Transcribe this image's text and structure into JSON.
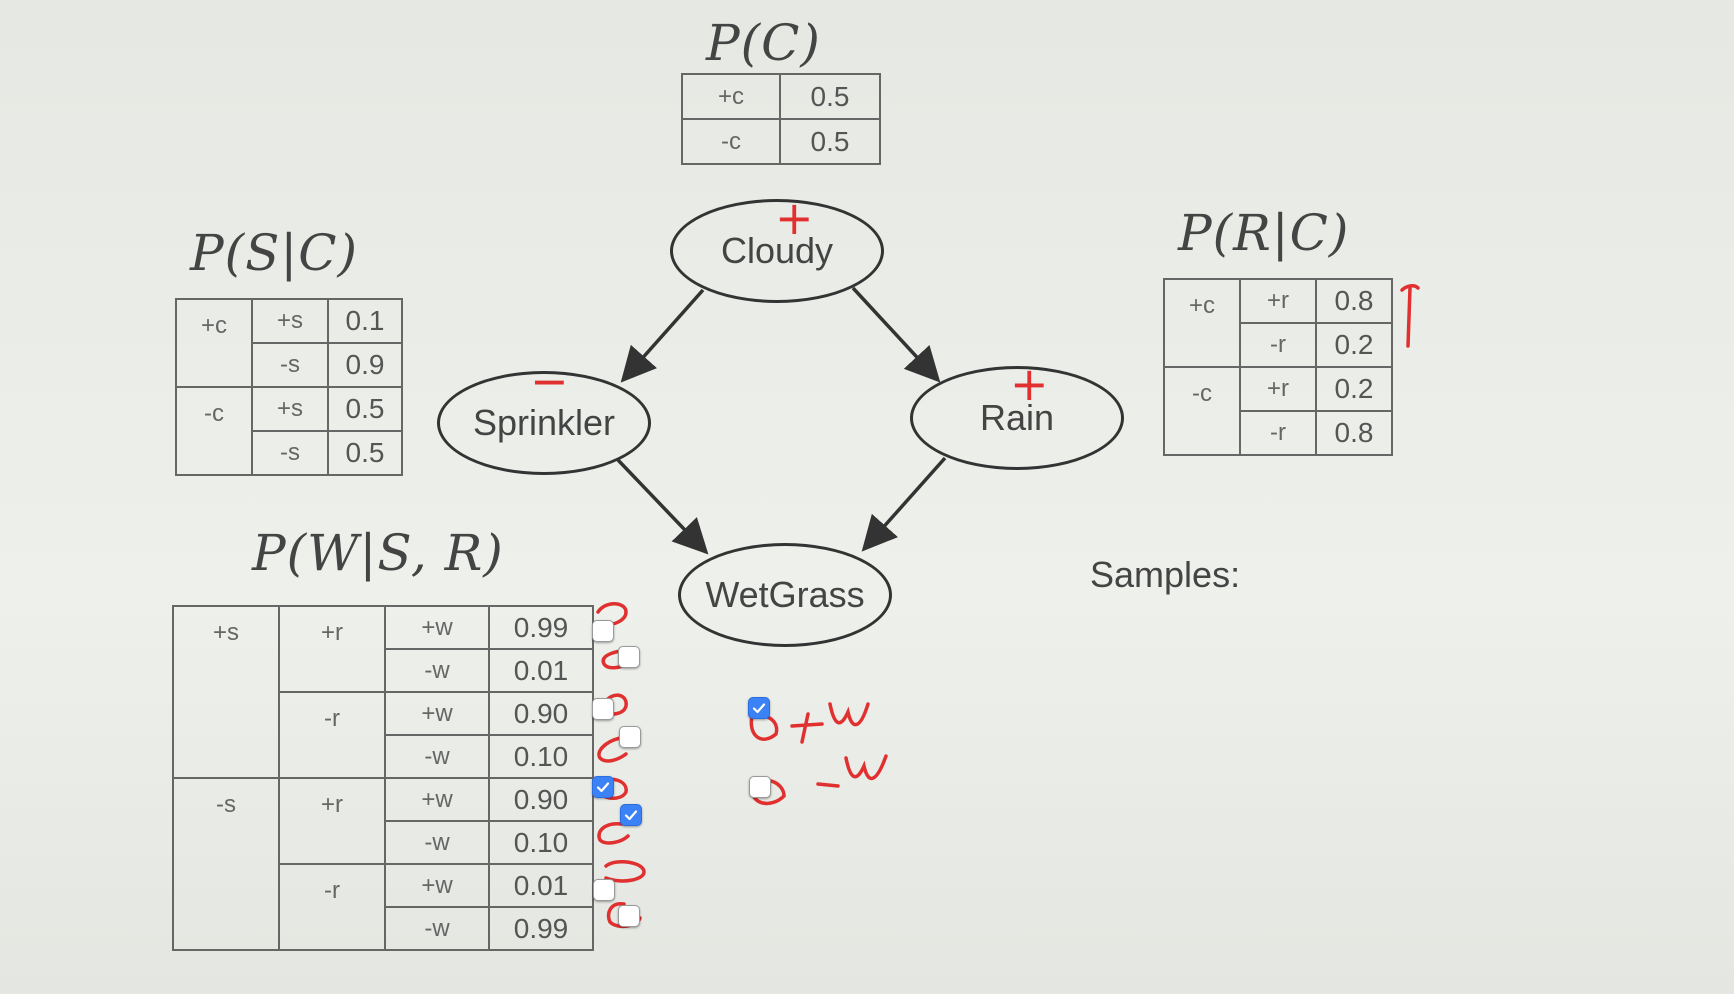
{
  "titles": {
    "pc": "P(C)",
    "psc": "P(S|C)",
    "prc": "P(R|C)",
    "pwsr": "P(W|S, R)"
  },
  "pc_table": [
    {
      "c": "+c",
      "p": "0.5"
    },
    {
      "c": "-c",
      "p": "0.5"
    }
  ],
  "psc_table": [
    {
      "c": "+c",
      "rows": [
        {
          "s": "+s",
          "p": "0.1"
        },
        {
          "s": "-s",
          "p": "0.9"
        }
      ]
    },
    {
      "c": "-c",
      "rows": [
        {
          "s": "+s",
          "p": "0.5"
        },
        {
          "s": "-s",
          "p": "0.5"
        }
      ]
    }
  ],
  "prc_table": [
    {
      "c": "+c",
      "rows": [
        {
          "r": "+r",
          "p": "0.8"
        },
        {
          "r": "-r",
          "p": "0.2"
        }
      ]
    },
    {
      "c": "-c",
      "rows": [
        {
          "r": "+r",
          "p": "0.2"
        },
        {
          "r": "-r",
          "p": "0.8"
        }
      ]
    }
  ],
  "pwsr_table": [
    {
      "s": "+s",
      "groups": [
        {
          "r": "+r",
          "rows": [
            {
              "w": "+w",
              "p": "0.99"
            },
            {
              "w": "-w",
              "p": "0.01"
            }
          ]
        },
        {
          "r": "-r",
          "rows": [
            {
              "w": "+w",
              "p": "0.90"
            },
            {
              "w": "-w",
              "p": "0.10"
            }
          ]
        }
      ]
    },
    {
      "s": "-s",
      "groups": [
        {
          "r": "+r",
          "rows": [
            {
              "w": "+w",
              "p": "0.90"
            },
            {
              "w": "-w",
              "p": "0.10"
            }
          ]
        },
        {
          "r": "-r",
          "rows": [
            {
              "w": "+w",
              "p": "0.01"
            },
            {
              "w": "-w",
              "p": "0.99"
            }
          ]
        }
      ]
    }
  ],
  "nodes": {
    "cloudy": "Cloudy",
    "sprinkler": "Sprinkler",
    "rain": "Rain",
    "wetgrass": "WetGrass"
  },
  "samples_label": "Samples:",
  "table_checkboxes": [
    false,
    false,
    false,
    false,
    true,
    true,
    false,
    false
  ],
  "answer_checkboxes": [
    {
      "label": "+w",
      "checked": true
    },
    {
      "label": "-w",
      "checked": false
    }
  ],
  "annotations": {
    "cloudy_mark": "+",
    "sprinkler_mark": "−",
    "rain_mark": "+"
  },
  "colors": {
    "ink": "#333333",
    "marker_red": "#e0302f",
    "checkbox_checked": "#3b82f6"
  }
}
